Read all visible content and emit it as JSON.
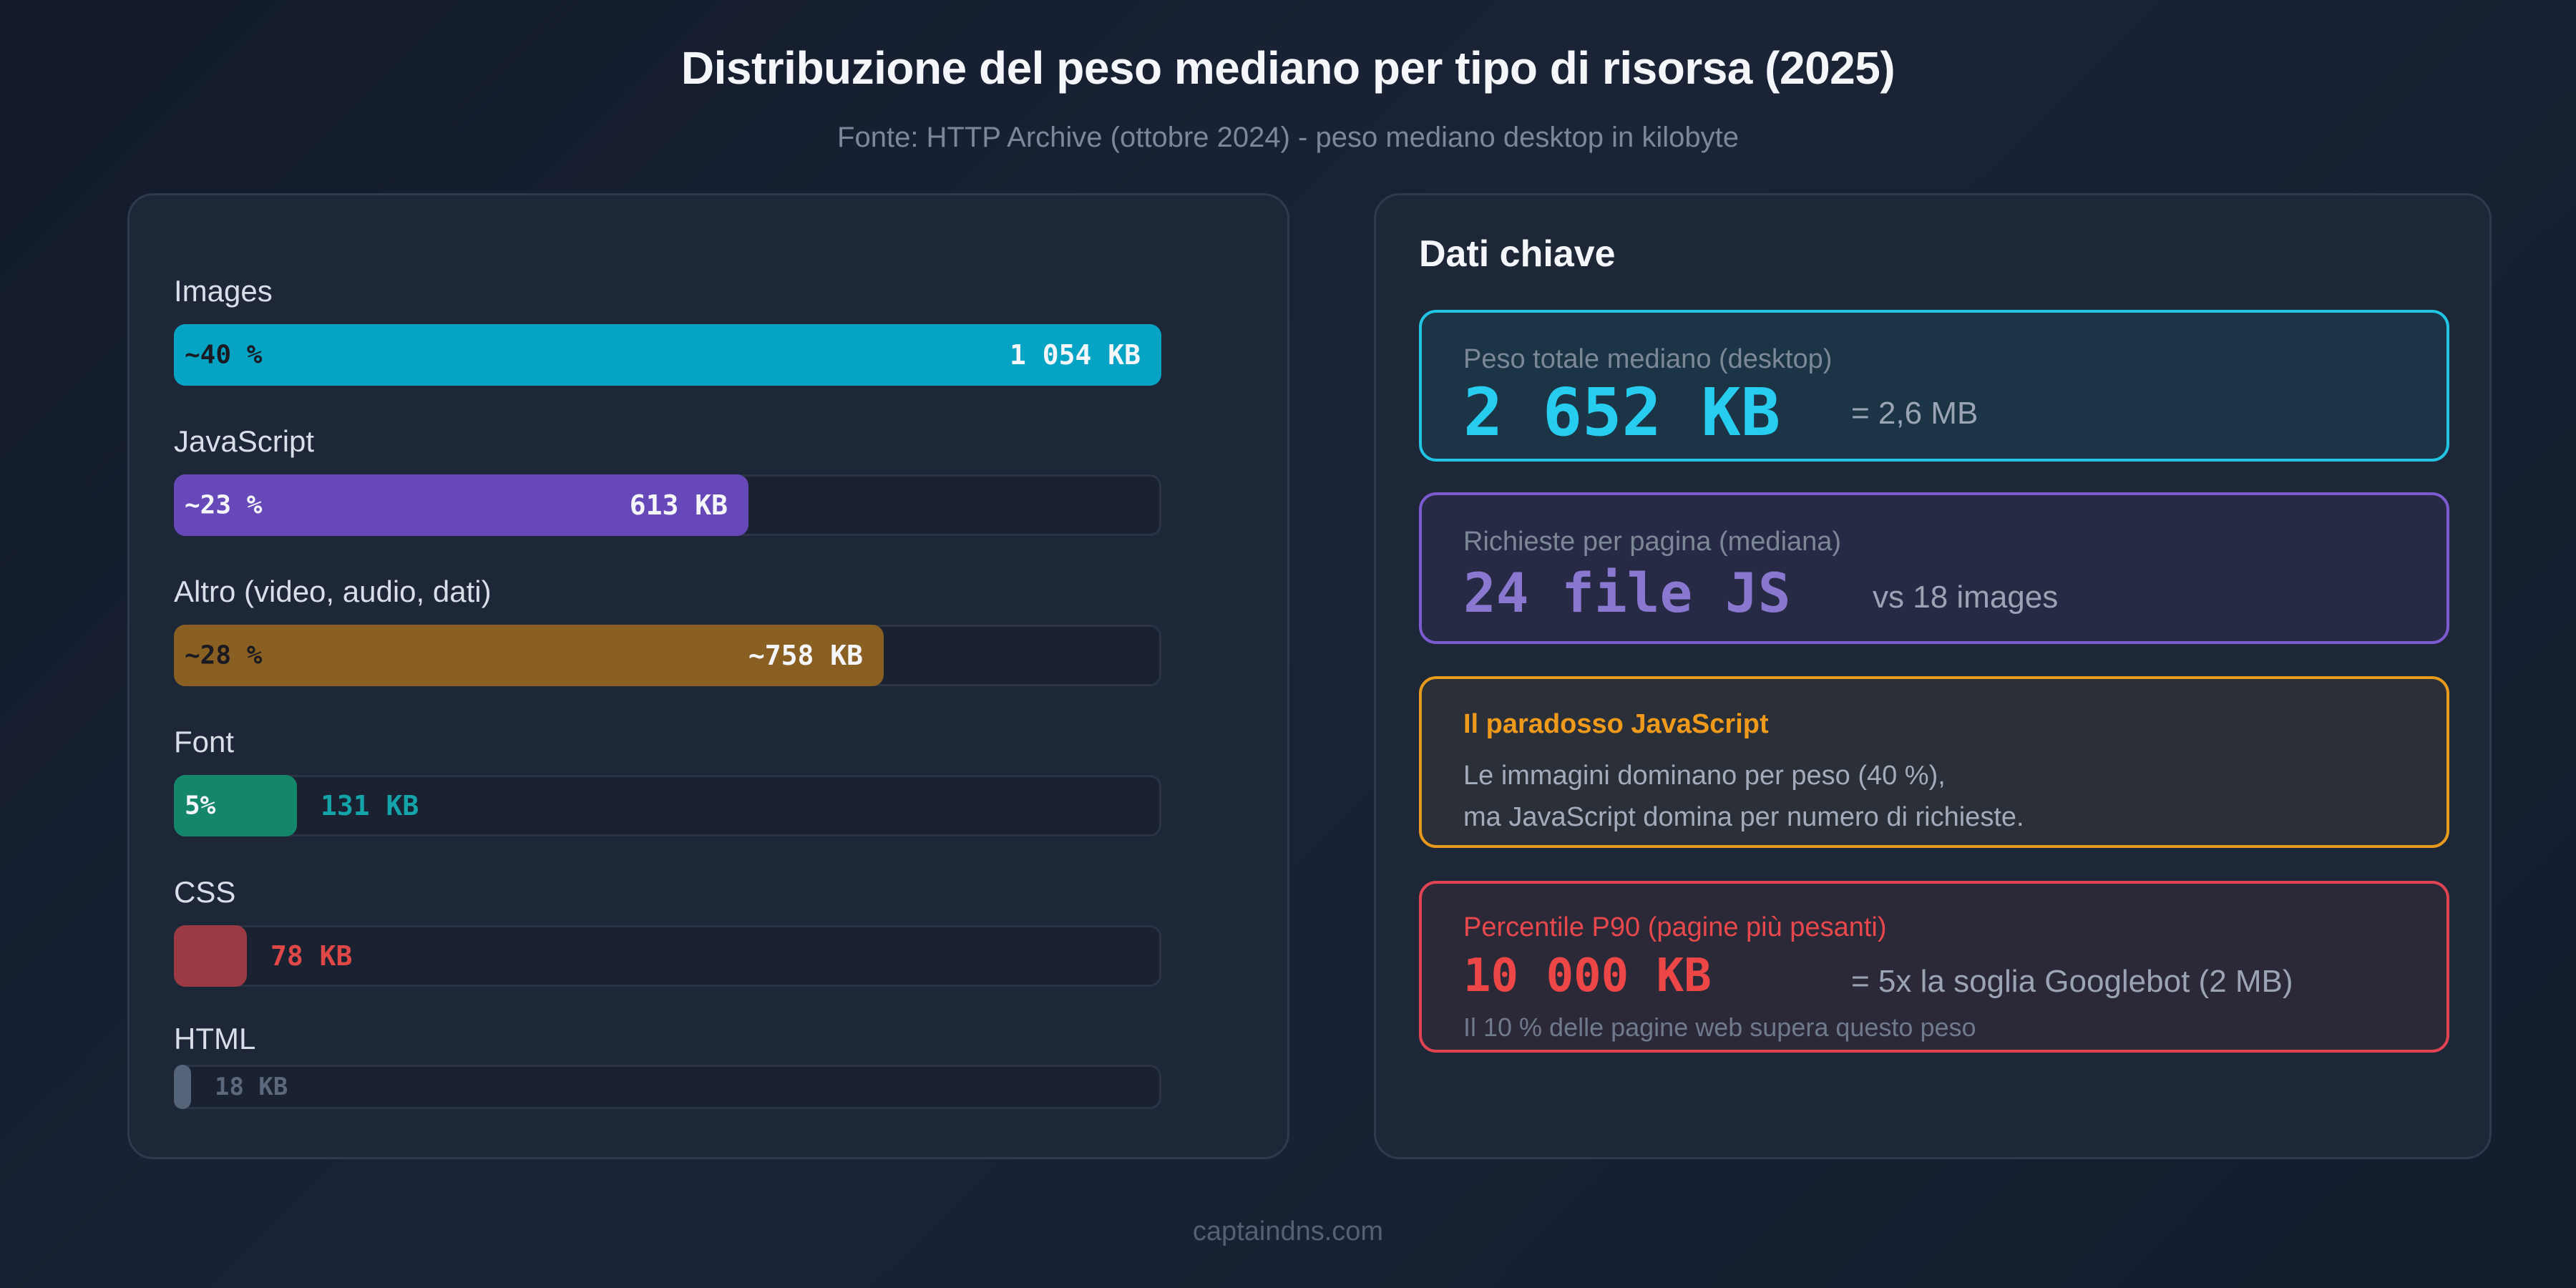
{
  "header": {
    "title": "Distribuzione del peso mediano per tipo di risorsa (2025)",
    "subtitle": "Fonte: HTTP Archive (ottobre 2024) - peso mediano desktop in kilobyte"
  },
  "chart_data": {
    "type": "bar",
    "orientation": "horizontal",
    "title": "Distribuzione del peso mediano per tipo di risorsa (2025)",
    "subtitle": "Fonte: HTTP Archive (ottobre 2024) - peso mediano desktop in kilobyte",
    "categories": [
      "Images",
      "JavaScript",
      "Altro (video, audio, dati)",
      "Font",
      "CSS",
      "HTML"
    ],
    "values": [
      1054,
      613,
      758,
      131,
      78,
      18
    ],
    "value_labels": [
      "1 054 KB",
      "613 KB",
      "~758 KB",
      "131 KB",
      "78 KB",
      "18 KB"
    ],
    "pct_labels": [
      "~40 %",
      "~23 %",
      "~28 %",
      "5%",
      "",
      ""
    ],
    "scale_max": 1054,
    "unit": "KB",
    "colors": [
      "#06a4c4",
      "#6648b8",
      "#8a6022",
      "#14876a",
      "#9b3a42",
      "#56647a"
    ],
    "value_label_colors": [
      "#f4f6fa",
      "#f4f6fa",
      "#f4f6fa",
      "#14a3a8",
      "#e04848",
      "#5c687c"
    ]
  },
  "key_data": {
    "title": "Dati chiave",
    "cards": [
      {
        "label": "Peso totale mediano (desktop)",
        "big": "2 652 KB",
        "side": "= 2,6 MB",
        "note": "",
        "border": "#22c4e4",
        "bg": "#1b3446",
        "label_color": "#7c8898",
        "big_color": "#27cdee"
      },
      {
        "label": "Richieste per pagina (mediana)",
        "big": "24 file JS",
        "side": "vs 18 images",
        "note": "",
        "border": "#7c5ad0",
        "bg": "#262a44",
        "label_color": "#7c8898",
        "big_color": "#8a78d0"
      },
      {
        "label": "Il paradosso JavaScript",
        "lines": [
          "Le immagini dominano per peso (40 %),",
          "ma JavaScript domina per numero di richieste."
        ],
        "border": "#e89a1c",
        "bg": "#2a2f38",
        "label_color": "#f09a1c"
      },
      {
        "label": "Percentile P90 (pagine più pesanti)",
        "big": "10 000 KB",
        "side": "= 5x la soglia Googlebot (2 MB)",
        "note": "Il 10 % delle pagine web supera questo peso",
        "border": "#e04452",
        "bg": "#2b2838",
        "label_color": "#e8484c",
        "big_color": "#ec4646"
      }
    ]
  },
  "footer": {
    "text": "captaindns.com"
  }
}
